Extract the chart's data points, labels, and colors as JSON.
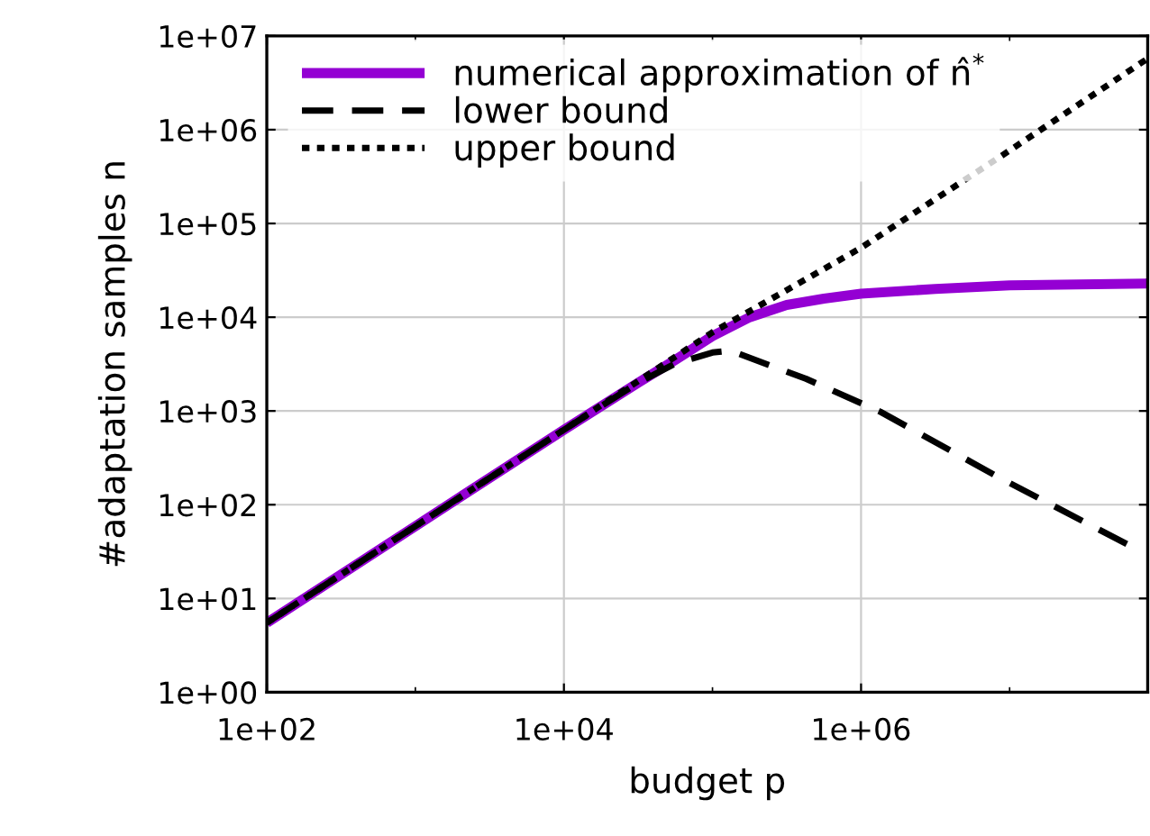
{
  "chart_data": {
    "type": "line",
    "xlabel": "budget p",
    "ylabel": "#adaptation samples n",
    "log": "xy",
    "grid": true,
    "legend": "top left",
    "xlim": [
      100,
      85000000
    ],
    "xticks": [
      {
        "value": 100,
        "label": "1e+02"
      },
      {
        "value": 1000,
        "label": null
      },
      {
        "value": 10000,
        "label": "1e+04"
      },
      {
        "value": 100000,
        "label": null
      },
      {
        "value": 1000000,
        "label": "1e+06"
      },
      {
        "value": 10000000,
        "label": null
      }
    ],
    "ylim": [
      1,
      10000000
    ],
    "yticks": [
      {
        "value": 1,
        "label": "1e+00"
      },
      {
        "value": 10,
        "label": "1e+01"
      },
      {
        "value": 100,
        "label": "1e+02"
      },
      {
        "value": 1000,
        "label": "1e+03"
      },
      {
        "value": 10000,
        "label": "1e+04"
      },
      {
        "value": 100000,
        "label": "1e+05"
      },
      {
        "value": 1000000,
        "label": "1e+06"
      },
      {
        "value": 10000000,
        "label": "1e+07"
      }
    ],
    "series": [
      {
        "name": "numerical approximation of n̂$^{*}$",
        "color": "#9400d3",
        "line_style": "solid",
        "x": [
          100,
          1000,
          10000,
          31600,
          56200,
          100000,
          178000,
          316000,
          562000,
          1000000,
          3160000,
          10000000,
          85000000
        ],
        "values": [
          5.5,
          59,
          630,
          2000,
          3500,
          6300,
          10000,
          13500,
          15800,
          17800,
          20000,
          21900,
          22900
        ]
      },
      {
        "name": "lower bound",
        "color": "#000000",
        "line_style": "dashed",
        "x": [
          100,
          1000,
          10000,
          31600,
          56200,
          100000,
          132000,
          427000,
          1350000,
          8500000,
          68000000
        ],
        "values": [
          5.5,
          59,
          630,
          2000,
          3200,
          4200,
          4400,
          2200,
          980,
          195,
          35
        ]
      },
      {
        "name": "upper bound",
        "color": "#000000",
        "line_style": "dotted",
        "x": [
          100,
          1000,
          10000,
          100000,
          1000000,
          10000000,
          85000000
        ],
        "values": [
          5.5,
          59,
          630,
          6900,
          55000,
          600000,
          5750000
        ]
      }
    ]
  }
}
